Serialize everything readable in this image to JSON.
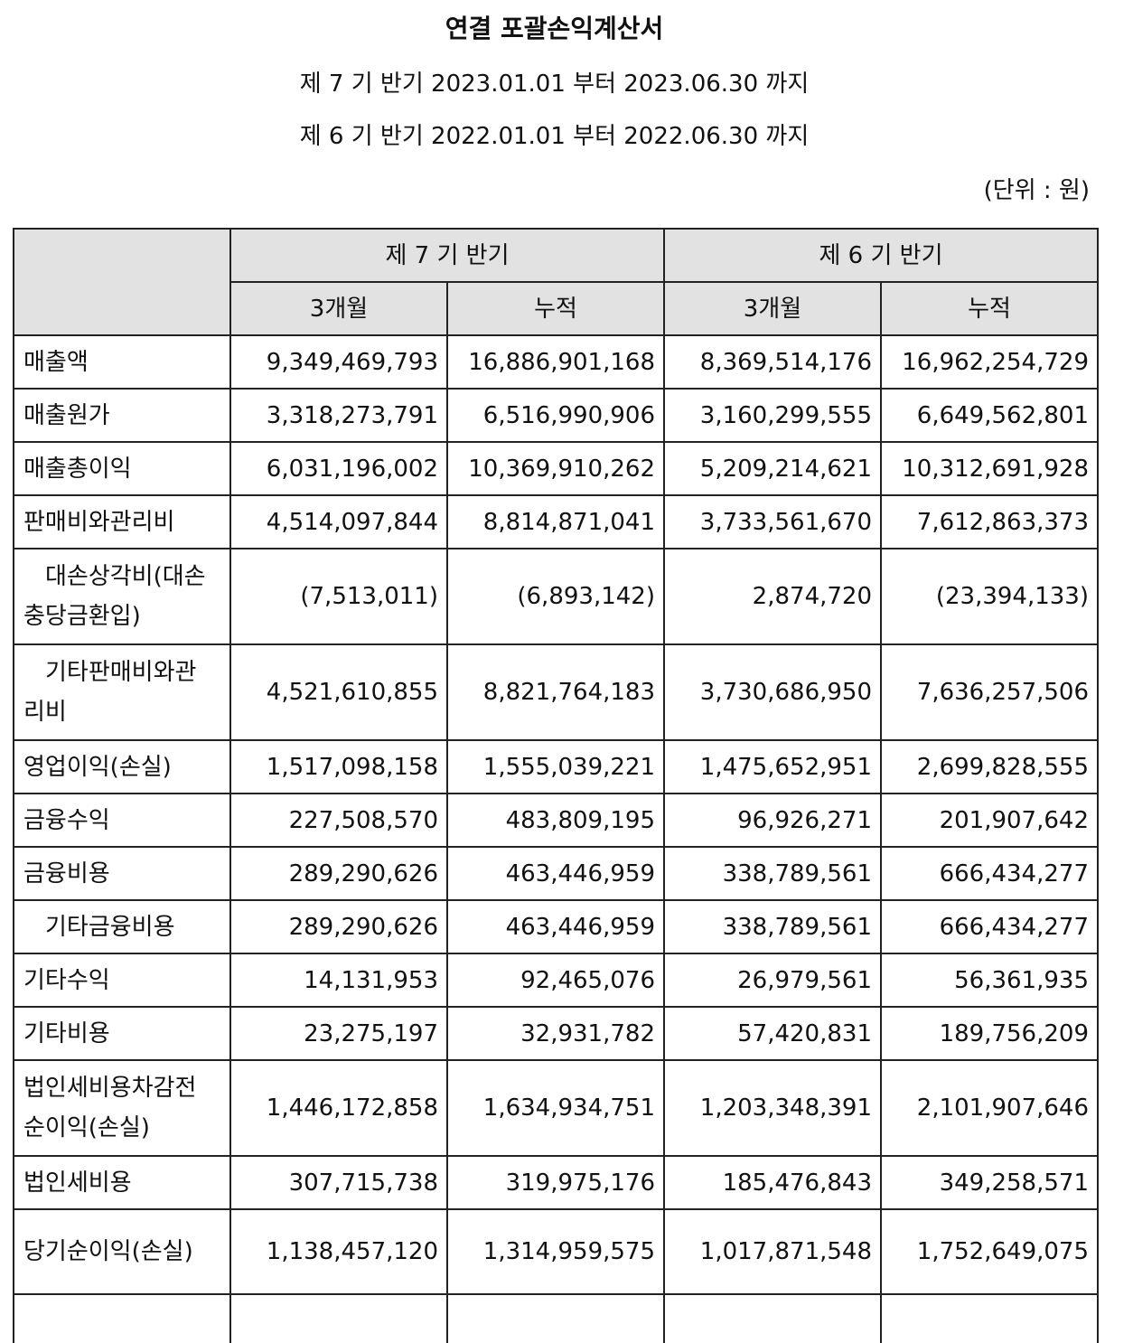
{
  "title": "연결 포괄손익계산서",
  "periods": [
    "제 7 기 반기 2023.01.01 부터 2023.06.30 까지",
    "제 6 기 반기 2022.01.01 부터 2022.06.30 까지"
  ],
  "unit": "(단위 : 원)",
  "table": {
    "group_headers": [
      "제 7 기 반기",
      "제 6 기 반기"
    ],
    "sub_headers": [
      "3개월",
      "누적",
      "3개월",
      "누적"
    ],
    "rows": [
      {
        "label": "매출액",
        "values": [
          "9,349,469,793",
          "16,886,901,168",
          "8,369,514,176",
          "16,962,254,729"
        ]
      },
      {
        "label": "매출원가",
        "values": [
          "3,318,273,791",
          "6,516,990,906",
          "3,160,299,555",
          "6,649,562,801"
        ]
      },
      {
        "label": "매출총이익",
        "values": [
          "6,031,196,002",
          "10,369,910,262",
          "5,209,214,621",
          "10,312,691,928"
        ]
      },
      {
        "label": "판매비와관리비",
        "values": [
          "4,514,097,844",
          "8,814,871,041",
          "3,733,561,670",
          "7,612,863,373"
        ]
      },
      {
        "label_line1": "대손상각비(대손",
        "label_line2": "충당금환입)",
        "values": [
          "(7,513,011)",
          "(6,893,142)",
          "2,874,720",
          "(23,394,133)"
        ]
      },
      {
        "label_line1": "기타판매비와관",
        "label_line2": "리비",
        "values": [
          "4,521,610,855",
          "8,821,764,183",
          "3,730,686,950",
          "7,636,257,506"
        ]
      },
      {
        "label": "영업이익(손실)",
        "values": [
          "1,517,098,158",
          "1,555,039,221",
          "1,475,652,951",
          "2,699,828,555"
        ]
      },
      {
        "label": "금융수익",
        "values": [
          "227,508,570",
          "483,809,195",
          "96,926,271",
          "201,907,642"
        ]
      },
      {
        "label": "금융비용",
        "values": [
          "289,290,626",
          "463,446,959",
          "338,789,561",
          "666,434,277"
        ]
      },
      {
        "label": "기타금융비용",
        "values": [
          "289,290,626",
          "463,446,959",
          "338,789,561",
          "666,434,277"
        ]
      },
      {
        "label": "기타수익",
        "values": [
          "14,131,953",
          "92,465,076",
          "26,979,561",
          "56,361,935"
        ]
      },
      {
        "label": "기타비용",
        "values": [
          "23,275,197",
          "32,931,782",
          "57,420,831",
          "189,756,209"
        ]
      },
      {
        "label_line1": "법인세비용차감전",
        "label_line2": "순이익(손실)",
        "values": [
          "1,446,172,858",
          "1,634,934,751",
          "1,203,348,391",
          "2,101,907,646"
        ]
      },
      {
        "label": "법인세비용",
        "values": [
          "307,715,738",
          "319,975,176",
          "185,476,843",
          "349,258,571"
        ]
      },
      {
        "label": "당기순이익(손실)",
        "values": [
          "1,138,457,120",
          "1,314,959,575",
          "1,017,871,548",
          "1,752,649,075"
        ]
      }
    ]
  }
}
